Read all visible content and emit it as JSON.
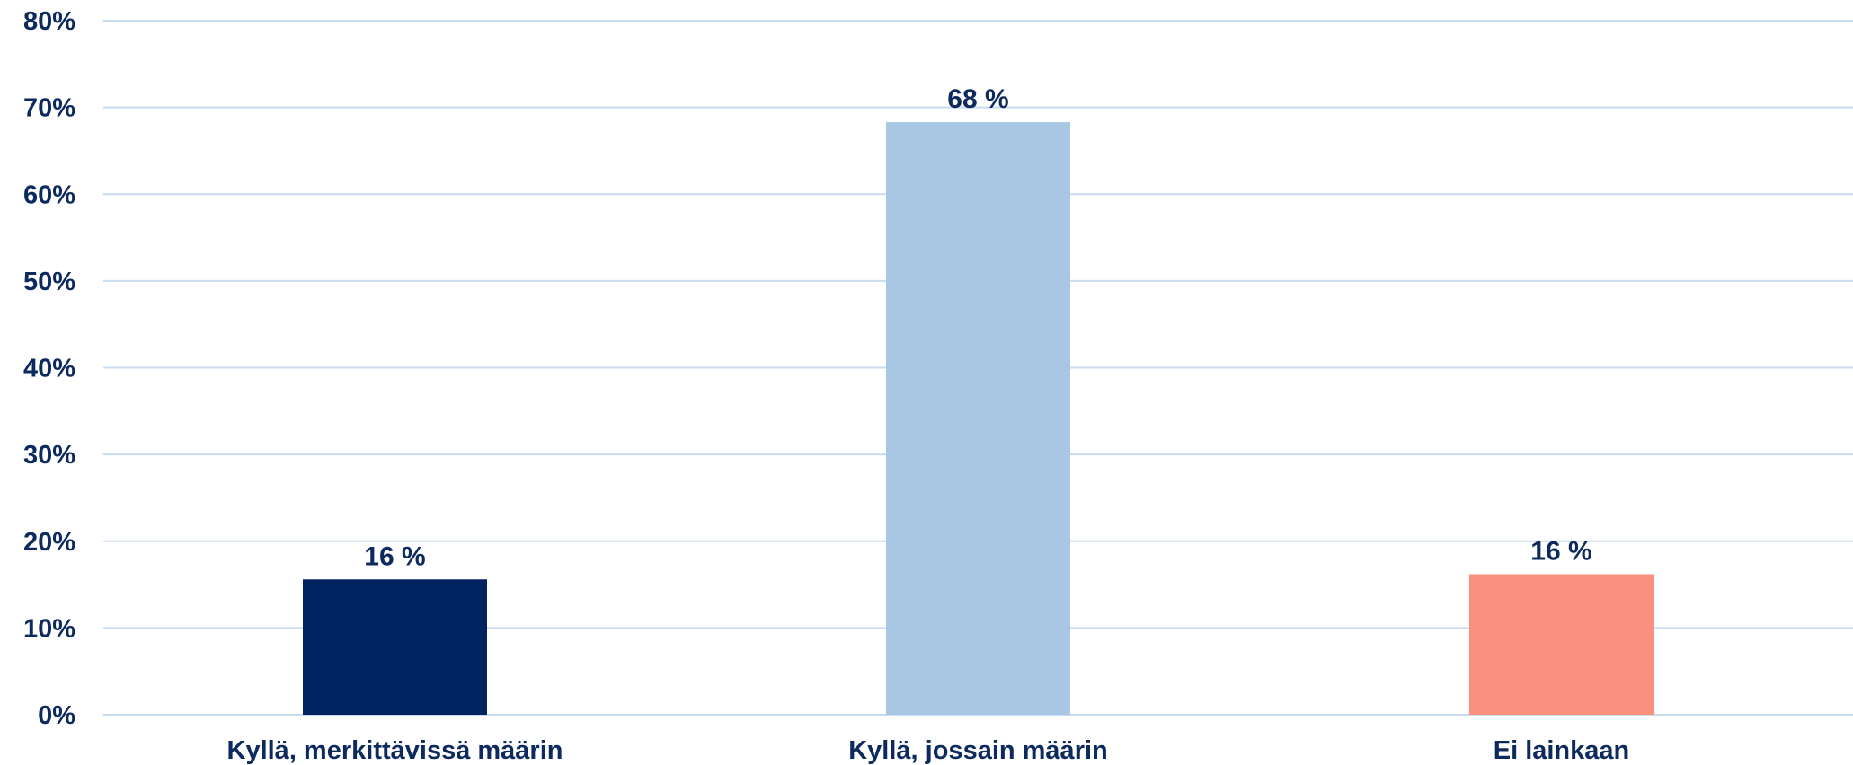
{
  "chart_data": {
    "type": "bar",
    "title": "",
    "xlabel": "",
    "ylabel": "",
    "categories": [
      "Kyllä, merkittävissä määrin",
      "Kyllä, jossain määrin",
      "Ei lainkaan"
    ],
    "values": [
      15.6,
      68.3,
      16.2
    ],
    "data_labels": [
      "16 %",
      "68 %",
      "16 %"
    ],
    "bar_colors": [
      "#002360",
      "#a7c7e5",
      "#fb9080"
    ],
    "ylim": [
      0,
      80
    ],
    "y_ticks": [
      0,
      10,
      20,
      30,
      40,
      50,
      60,
      70,
      80
    ],
    "y_tick_labels": [
      "0%",
      "10%",
      "20%",
      "30%",
      "40%",
      "50%",
      "60%",
      "70%",
      "80%"
    ],
    "grid": true,
    "legend": "none"
  },
  "colors": {
    "text": "#0d2a5e",
    "gridline": "#c9dcef",
    "baseline": "#c9dcef"
  }
}
